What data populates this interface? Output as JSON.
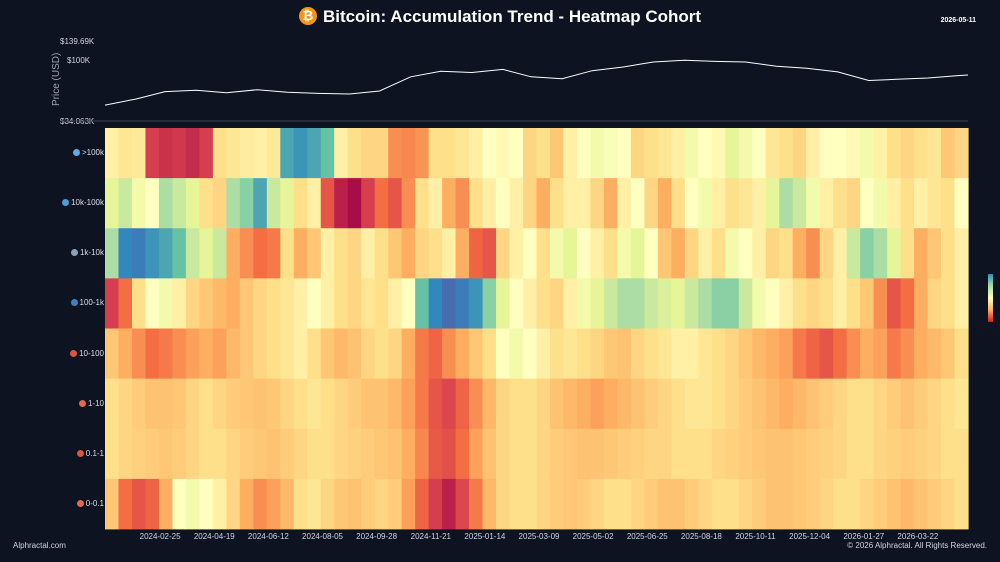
{
  "header": {
    "title": "Bitcoin: Accumulation Trend - Heatmap Cohort",
    "date": "2026-05-11",
    "icon": "bitcoin-icon"
  },
  "footer": {
    "left": "Alphractal.com",
    "right": "© 2026 Alphractal. All Rights Reserved."
  },
  "colors": {
    "background": "#0d1320",
    "btc": "#f7931a",
    "scale": [
      "#5e4fa2",
      "#3288bd",
      "#66c2a5",
      "#abdda4",
      "#e6f598",
      "#ffffbf",
      "#fee08b",
      "#fdae61",
      "#f46d43",
      "#d53e4f",
      "#9e0142"
    ]
  },
  "chart_data": [
    {
      "type": "line",
      "ylabel": "Price (USD)",
      "yticks": [
        "$139.69K",
        "$100K",
        "$34.063K"
      ],
      "ylim": [
        34063,
        139690
      ],
      "x": [
        "2024-01-01",
        "2024-02-01",
        "2024-03-01",
        "2024-04-01",
        "2024-05-01",
        "2024-06-01",
        "2024-07-01",
        "2024-08-01",
        "2024-09-01",
        "2024-10-01",
        "2024-11-01",
        "2024-12-01",
        "2025-01-01",
        "2025-02-01",
        "2025-03-01",
        "2025-04-01",
        "2025-05-01",
        "2025-06-01",
        "2025-07-01",
        "2025-08-01",
        "2025-09-01",
        "2025-10-01",
        "2025-11-01",
        "2025-12-01",
        "2026-01-01",
        "2026-02-01",
        "2026-03-01",
        "2026-04-01",
        "2026-05-01",
        "2026-05-11"
      ],
      "values": [
        42000,
        52000,
        64000,
        66000,
        62000,
        67000,
        63000,
        61000,
        60000,
        65000,
        88000,
        97000,
        95000,
        100000,
        88000,
        85000,
        98000,
        104000,
        112000,
        115000,
        113000,
        112000,
        105000,
        102000,
        96000,
        82000,
        84000,
        86000,
        90000,
        91000
      ]
    },
    {
      "type": "heatmap",
      "xticks": [
        "2024-02-25",
        "2024-04-19",
        "2024-06-12",
        "2024-08-05",
        "2024-09-28",
        "2024-11-21",
        "2025-01-14",
        "2025-03-09",
        "2025-05-02",
        "2025-06-25",
        "2025-08-18",
        "2025-10-11",
        "2025-12-04",
        "2026-01-27",
        "2026-03-22"
      ],
      "xrange": [
        "2024-01-01",
        "2026-05-11"
      ],
      "rows": [
        {
          "label": ">100k",
          "icon": "whale-icon",
          "values": [
            0.55,
            0.58,
            0.57,
            0.9,
            0.92,
            0.91,
            0.93,
            0.9,
            0.6,
            0.58,
            0.56,
            0.55,
            0.57,
            0.15,
            0.12,
            0.15,
            0.2,
            0.55,
            0.6,
            0.62,
            0.62,
            0.75,
            0.76,
            0.74,
            0.6,
            0.6,
            0.58,
            0.55,
            0.5,
            0.52,
            0.5,
            0.62,
            0.6,
            0.65,
            0.55,
            0.5,
            0.45,
            0.48,
            0.5,
            0.62,
            0.6,
            0.58,
            0.55,
            0.45,
            0.5,
            0.52,
            0.4,
            0.45,
            0.5,
            0.58,
            0.6,
            0.62,
            0.55,
            0.5,
            0.5,
            0.52,
            0.45,
            0.55,
            0.6,
            0.62,
            0.6,
            0.58,
            0.65,
            0.62
          ]
        },
        {
          "label": "10k-100k",
          "icon": "dolphin-icon",
          "values": [
            0.4,
            0.35,
            0.45,
            0.5,
            0.3,
            0.35,
            0.4,
            0.6,
            0.62,
            0.3,
            0.25,
            0.15,
            0.35,
            0.4,
            0.6,
            0.55,
            0.85,
            0.95,
            0.98,
            0.9,
            0.8,
            0.85,
            0.75,
            0.6,
            0.55,
            0.7,
            0.75,
            0.6,
            0.55,
            0.5,
            0.55,
            0.62,
            0.7,
            0.6,
            0.55,
            0.55,
            0.62,
            0.7,
            0.55,
            0.5,
            0.62,
            0.7,
            0.6,
            0.5,
            0.45,
            0.55,
            0.6,
            0.58,
            0.55,
            0.4,
            0.3,
            0.35,
            0.45,
            0.55,
            0.6,
            0.62,
            0.5,
            0.45,
            0.55,
            0.6,
            0.55,
            0.58,
            0.6,
            0.5
          ]
        },
        {
          "label": "1k-10k",
          "icon": "shark-icon",
          "values": [
            0.3,
            0.1,
            0.08,
            0.12,
            0.15,
            0.2,
            0.35,
            0.4,
            0.35,
            0.7,
            0.75,
            0.8,
            0.78,
            0.6,
            0.7,
            0.65,
            0.55,
            0.6,
            0.62,
            0.55,
            0.6,
            0.65,
            0.7,
            0.62,
            0.6,
            0.55,
            0.7,
            0.82,
            0.85,
            0.62,
            0.55,
            0.5,
            0.6,
            0.45,
            0.4,
            0.5,
            0.55,
            0.6,
            0.45,
            0.4,
            0.5,
            0.65,
            0.7,
            0.62,
            0.55,
            0.6,
            0.45,
            0.5,
            0.55,
            0.62,
            0.6,
            0.7,
            0.75,
            0.62,
            0.55,
            0.35,
            0.25,
            0.3,
            0.4,
            0.6,
            0.7,
            0.65,
            0.6,
            0.55
          ]
        },
        {
          "label": "100-1k",
          "icon": "fish-icon",
          "values": [
            0.9,
            0.8,
            0.6,
            0.5,
            0.45,
            0.55,
            0.62,
            0.65,
            0.68,
            0.7,
            0.65,
            0.62,
            0.6,
            0.58,
            0.55,
            0.5,
            0.55,
            0.6,
            0.62,
            0.58,
            0.6,
            0.55,
            0.5,
            0.2,
            0.1,
            0.05,
            0.08,
            0.12,
            0.25,
            0.4,
            0.5,
            0.55,
            0.6,
            0.62,
            0.55,
            0.45,
            0.4,
            0.35,
            0.3,
            0.3,
            0.35,
            0.38,
            0.4,
            0.35,
            0.3,
            0.25,
            0.25,
            0.35,
            0.45,
            0.5,
            0.55,
            0.6,
            0.62,
            0.6,
            0.55,
            0.6,
            0.65,
            0.75,
            0.85,
            0.8,
            0.7,
            0.62,
            0.6,
            0.55
          ]
        },
        {
          "label": "10-100",
          "icon": "crab-icon",
          "values": [
            0.65,
            0.7,
            0.75,
            0.8,
            0.78,
            0.75,
            0.72,
            0.7,
            0.72,
            0.68,
            0.65,
            0.62,
            0.6,
            0.58,
            0.55,
            0.6,
            0.65,
            0.68,
            0.66,
            0.62,
            0.6,
            0.62,
            0.7,
            0.78,
            0.82,
            0.75,
            0.7,
            0.65,
            0.6,
            0.5,
            0.45,
            0.5,
            0.55,
            0.6,
            0.58,
            0.6,
            0.62,
            0.65,
            0.66,
            0.62,
            0.6,
            0.58,
            0.55,
            0.55,
            0.58,
            0.6,
            0.62,
            0.65,
            0.68,
            0.7,
            0.72,
            0.78,
            0.82,
            0.85,
            0.8,
            0.75,
            0.7,
            0.72,
            0.78,
            0.75,
            0.7,
            0.68,
            0.65,
            0.6
          ]
        },
        {
          "label": "1-10",
          "icon": "shrimp-icon",
          "values": [
            0.6,
            0.62,
            0.64,
            0.66,
            0.66,
            0.65,
            0.62,
            0.6,
            0.62,
            0.64,
            0.65,
            0.66,
            0.65,
            0.62,
            0.6,
            0.58,
            0.6,
            0.62,
            0.64,
            0.66,
            0.66,
            0.68,
            0.72,
            0.78,
            0.85,
            0.88,
            0.82,
            0.75,
            0.68,
            0.62,
            0.6,
            0.6,
            0.62,
            0.66,
            0.68,
            0.7,
            0.72,
            0.7,
            0.68,
            0.66,
            0.64,
            0.62,
            0.6,
            0.58,
            0.58,
            0.6,
            0.62,
            0.64,
            0.66,
            0.68,
            0.7,
            0.68,
            0.66,
            0.64,
            0.62,
            0.6,
            0.6,
            0.62,
            0.64,
            0.66,
            0.64,
            0.62,
            0.6,
            0.58
          ]
        },
        {
          "label": "0.1-1",
          "icon": "crab-icon",
          "values": [
            0.6,
            0.62,
            0.63,
            0.64,
            0.65,
            0.64,
            0.62,
            0.6,
            0.6,
            0.62,
            0.64,
            0.65,
            0.66,
            0.64,
            0.62,
            0.6,
            0.6,
            0.62,
            0.63,
            0.64,
            0.65,
            0.66,
            0.7,
            0.76,
            0.84,
            0.86,
            0.8,
            0.72,
            0.66,
            0.62,
            0.6,
            0.6,
            0.62,
            0.64,
            0.65,
            0.66,
            0.66,
            0.65,
            0.64,
            0.63,
            0.62,
            0.62,
            0.6,
            0.6,
            0.6,
            0.62,
            0.63,
            0.64,
            0.65,
            0.66,
            0.66,
            0.65,
            0.64,
            0.63,
            0.62,
            0.6,
            0.6,
            0.62,
            0.63,
            0.64,
            0.63,
            0.62,
            0.6,
            0.6
          ]
        },
        {
          "label": "0-0.1",
          "icon": "shrimp-icon",
          "values": [
            0.65,
            0.8,
            0.85,
            0.82,
            0.7,
            0.5,
            0.45,
            0.5,
            0.55,
            0.62,
            0.7,
            0.75,
            0.72,
            0.68,
            0.6,
            0.58,
            0.62,
            0.65,
            0.66,
            0.64,
            0.62,
            0.64,
            0.72,
            0.82,
            0.9,
            0.95,
            0.88,
            0.78,
            0.68,
            0.62,
            0.6,
            0.6,
            0.62,
            0.64,
            0.65,
            0.64,
            0.62,
            0.6,
            0.6,
            0.62,
            0.64,
            0.66,
            0.66,
            0.64,
            0.62,
            0.6,
            0.6,
            0.62,
            0.64,
            0.66,
            0.66,
            0.65,
            0.64,
            0.62,
            0.6,
            0.6,
            0.62,
            0.64,
            0.66,
            0.68,
            0.66,
            0.64,
            0.62,
            0.6
          ]
        }
      ]
    }
  ]
}
